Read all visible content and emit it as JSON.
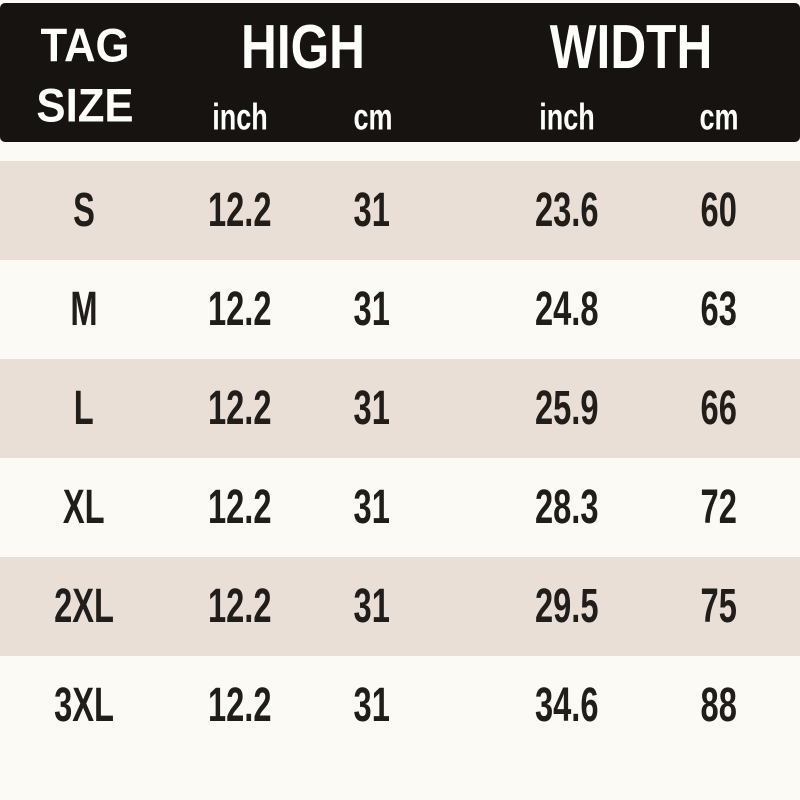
{
  "header": {
    "tag_line1": "TAG",
    "tag_line2": "SIZE",
    "high_label": "HIGH",
    "width_label": "WIDTH",
    "high_inch_label": "inch",
    "high_cm_label": "cm",
    "width_inch_label": "inch",
    "width_cm_label": "cm"
  },
  "chart_data": {
    "type": "table",
    "column_groups": [
      "TAG SIZE",
      "HIGH",
      "WIDTH"
    ],
    "columns": [
      "TAG SIZE",
      "HIGH inch",
      "HIGH cm",
      "WIDTH inch",
      "WIDTH cm"
    ],
    "rows": [
      [
        "S",
        12.2,
        31,
        23.6,
        60
      ],
      [
        "M",
        12.2,
        31,
        24.8,
        63
      ],
      [
        "L",
        12.2,
        31,
        25.9,
        66
      ],
      [
        "XL",
        12.2,
        31,
        28.3,
        72
      ],
      [
        "2XL",
        12.2,
        31,
        29.5,
        75
      ],
      [
        "3XL",
        12.2,
        31,
        34.6,
        88
      ]
    ],
    "layout": {
      "striped_rows": [
        "S",
        "L",
        "2XL"
      ],
      "header_position": "top"
    }
  },
  "colors": {
    "header_bg": "#161310",
    "header_text": "#fdfdfc",
    "stripe_bg": "#e9dfd6",
    "page_bg": "#fbfaf4",
    "body_text": "#201d1a"
  }
}
